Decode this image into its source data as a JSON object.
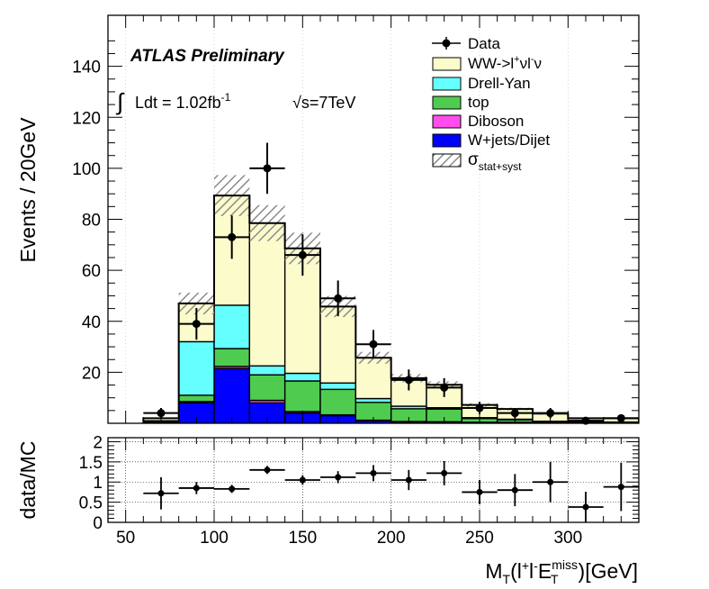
{
  "chart_data": {
    "type": "bar",
    "title": "",
    "xlabel_main": "M",
    "xlabel_sub": "T",
    "xlabel_paren": "(l",
    "xlabel_sup1": "+",
    "xlabel_l2": "l",
    "xlabel_sup2": "-",
    "xlabel_E": "E",
    "xlabel_Esub": "T",
    "xlabel_Esup": "miss",
    "xlabel_unit": ")[GeV]",
    "ylabel": "Events / 20GeV",
    "ratio_ylabel": "data/MC",
    "xlim": [
      40,
      340
    ],
    "ylim": [
      0,
      160
    ],
    "ratio_ylim": [
      0,
      2.1
    ],
    "x_ticks": [
      "50",
      "100",
      "150",
      "200",
      "250",
      "300"
    ],
    "y_ticks": [
      "20",
      "40",
      "60",
      "80",
      "100",
      "120",
      "140"
    ],
    "ratio_y_ticks": [
      "0",
      "0.5",
      "1",
      "1.5",
      "2"
    ],
    "bin_edges": [
      60,
      80,
      100,
      120,
      140,
      160,
      180,
      200,
      220,
      240,
      260,
      280,
      300,
      320,
      340
    ],
    "stack_order_bottom_to_top": [
      "W+jets/Dijet",
      "Diboson",
      "top",
      "Drell-Yan",
      "WW->l+vl-v"
    ],
    "series": [
      {
        "name": "WW->l+vl-v",
        "color": "#fbfbcc",
        "values": [
          1.0,
          15.0,
          43.0,
          56.0,
          49.0,
          30.0,
          16.0,
          11.0,
          9.0,
          5.0,
          4.0,
          3.0,
          1.2,
          1.5
        ]
      },
      {
        "name": "Drell-Yan",
        "color": "#66ffff",
        "values": [
          0.3,
          21.0,
          17.0,
          3.5,
          3.0,
          2.5,
          1.5,
          1.0,
          0.5,
          0.3,
          0.2,
          0.1,
          0.1,
          0.1
        ]
      },
      {
        "name": "top",
        "color": "#4fcc4f",
        "values": [
          0.3,
          2.5,
          7.0,
          10.0,
          12.0,
          10.0,
          7.0,
          5.0,
          5.0,
          1.5,
          1.0,
          0.5,
          0.5,
          0.3
        ]
      },
      {
        "name": "Diboson",
        "color": "#ff4ded",
        "values": [
          0.1,
          0.5,
          0.8,
          1.0,
          0.6,
          0.3,
          0.2,
          0.2,
          0.1,
          0.1,
          0.1,
          0.0,
          0.0,
          0.0
        ]
      },
      {
        "name": "W+jets/Dijet",
        "color": "#0000ff",
        "values": [
          0.3,
          8.0,
          21.5,
          8.0,
          4.0,
          3.0,
          1.0,
          0.5,
          0.5,
          0.3,
          0.3,
          0.2,
          0.2,
          0.1
        ]
      }
    ],
    "uncertainty_band": {
      "name": "stat+syst",
      "rel": 0.09
    },
    "data_points": {
      "name": "Data",
      "x": [
        70,
        90,
        110,
        130,
        150,
        170,
        190,
        210,
        230,
        250,
        270,
        290,
        310,
        330
      ],
      "y": [
        4,
        39,
        73,
        100,
        66,
        49,
        31,
        17,
        14,
        6,
        4,
        4,
        1,
        2
      ],
      "yerr": [
        2,
        6.2,
        8.5,
        10,
        8.1,
        7,
        5.6,
        4.1,
        3.7,
        2.4,
        2,
        2,
        1,
        1.4
      ]
    },
    "ratio_points": {
      "x": [
        70,
        90,
        110,
        130,
        150,
        170,
        190,
        210,
        230,
        250,
        270,
        290,
        310,
        330
      ],
      "y": [
        0.72,
        0.85,
        0.83,
        1.3,
        1.05,
        1.12,
        1.22,
        1.05,
        1.22,
        0.75,
        0.8,
        1.0,
        0.38,
        0.88
      ],
      "yerr": [
        0.4,
        0.15,
        0.1,
        0.1,
        0.12,
        0.15,
        0.2,
        0.25,
        0.3,
        0.3,
        0.4,
        0.5,
        0.38,
        0.6
      ]
    },
    "legend": {
      "location": "top-right",
      "entries": [
        {
          "kind": "marker",
          "label": "Data"
        },
        {
          "kind": "box",
          "color": "#fbfbcc",
          "main": "WW->l",
          "sup1": "+",
          "mid": "νl",
          "sup2": "-",
          "tail": "ν"
        },
        {
          "kind": "box",
          "color": "#66ffff",
          "label": "Drell-Yan"
        },
        {
          "kind": "box",
          "color": "#4fcc4f",
          "label": "top"
        },
        {
          "kind": "box",
          "color": "#ff4ded",
          "label": "Diboson"
        },
        {
          "kind": "box",
          "color": "#0000ff",
          "label": "W+jets/Dijet"
        },
        {
          "kind": "hatch",
          "main": "σ",
          "sub": "stat+syst"
        }
      ]
    },
    "annotations": {
      "experiment": "ATLAS Preliminary",
      "integral": "∫",
      "lumi_main": "Ldt = 1.02fb",
      "lumi_sup": "-1",
      "energy": "√s=7TeV"
    }
  }
}
